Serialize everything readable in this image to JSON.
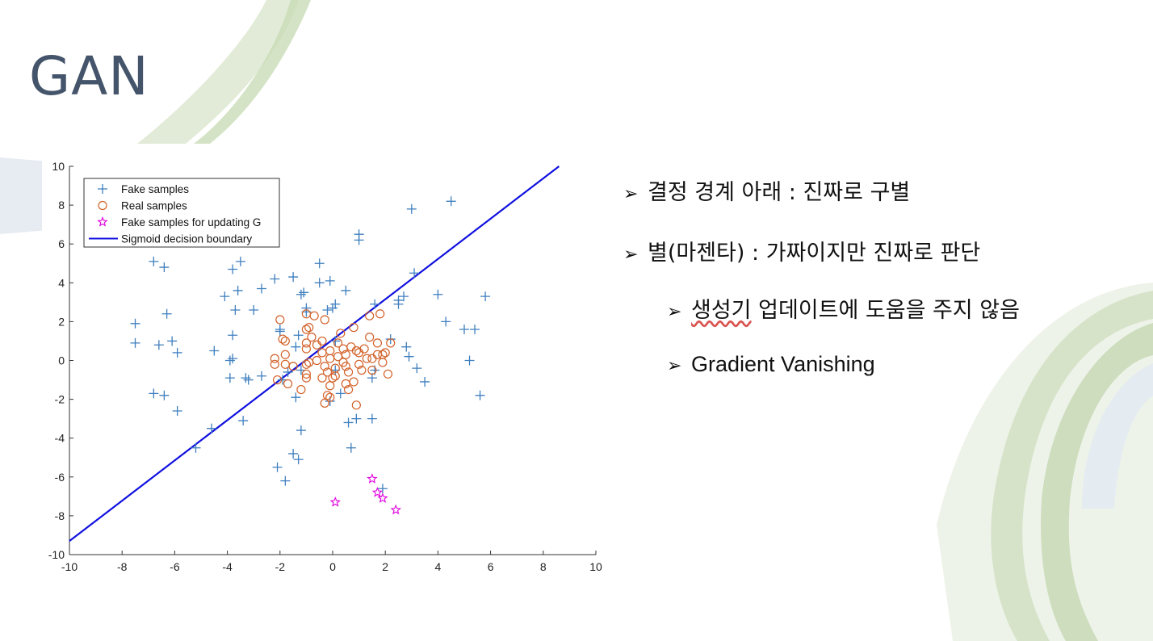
{
  "slide": {
    "title": "GAN",
    "bullets": [
      {
        "arrow": "➢",
        "text": "결정 경계 아래 : 진짜로 구별"
      },
      {
        "arrow": "➢",
        "text": "별(마젠타) : 가짜이지만 진짜로 판단"
      },
      {
        "arrow": "➢",
        "text_underlined": "생성기",
        "text_rest": " 업데이트에 도움을 주지 않음"
      },
      {
        "arrow": "➢",
        "text": "Gradient Vanishing"
      }
    ]
  },
  "colors": {
    "title": "#44546a",
    "fake": "#3f7fbf",
    "real": "#d2622a",
    "star": "#e000e0",
    "boundary": "#1010e0"
  },
  "chart_data": {
    "type": "scatter",
    "xlim": [
      -10,
      10
    ],
    "ylim": [
      -10,
      10
    ],
    "xticks": [
      "-10",
      "-8",
      "-6",
      "-4",
      "-2",
      "0",
      "2",
      "4",
      "6",
      "8",
      "10"
    ],
    "yticks": [
      "10",
      "8",
      "6",
      "4",
      "2",
      "0",
      "-2",
      "-4",
      "-6",
      "-8",
      "-10"
    ],
    "legend_position": "top-left",
    "legend": [
      {
        "label": "Fake samples",
        "marker": "plus"
      },
      {
        "label": "Real samples",
        "marker": "circle"
      },
      {
        "label": "Fake samples for updating G",
        "marker": "star"
      },
      {
        "label": "Sigmoid decision boundary",
        "marker": "line"
      }
    ],
    "series": [
      {
        "name": "Fake samples",
        "marker": "plus",
        "points": [
          [
            -7.5,
            1.9
          ],
          [
            -7.5,
            0.9
          ],
          [
            -6.8,
            5.1
          ],
          [
            -6.4,
            4.8
          ],
          [
            -6.3,
            2.4
          ],
          [
            -6.6,
            0.8
          ],
          [
            -6.1,
            1.0
          ],
          [
            -5.9,
            0.4
          ],
          [
            -6.8,
            -1.7
          ],
          [
            -6.4,
            -1.8
          ],
          [
            -5.9,
            -2.6
          ],
          [
            -4.6,
            -3.5
          ],
          [
            -5.2,
            -4.5
          ],
          [
            -4.5,
            0.5
          ],
          [
            -4.1,
            3.3
          ],
          [
            -3.8,
            4.7
          ],
          [
            -3.5,
            5.1
          ],
          [
            -3.6,
            3.6
          ],
          [
            -3.7,
            2.6
          ],
          [
            -3.0,
            2.6
          ],
          [
            -2.7,
            3.7
          ],
          [
            -3.8,
            1.3
          ],
          [
            -3.8,
            0.1
          ],
          [
            -3.9,
            0.0
          ],
          [
            -3.9,
            -0.9
          ],
          [
            -3.3,
            -0.9
          ],
          [
            -3.2,
            -1.0
          ],
          [
            -2.7,
            -0.8
          ],
          [
            -3.4,
            -3.1
          ],
          [
            -2.2,
            4.2
          ],
          [
            -1.5,
            4.3
          ],
          [
            -1.1,
            3.5
          ],
          [
            -1.2,
            3.4
          ],
          [
            -1.0,
            2.7
          ],
          [
            -1.0,
            2.5
          ],
          [
            -2.0,
            1.6
          ],
          [
            -2.0,
            1.5
          ],
          [
            -1.3,
            1.3
          ],
          [
            -1.4,
            0.7
          ],
          [
            -1.2,
            -0.5
          ],
          [
            -1.7,
            -0.6
          ],
          [
            -1.9,
            -1.0
          ],
          [
            -1.4,
            -1.9
          ],
          [
            -1.2,
            -3.6
          ],
          [
            -1.5,
            -4.8
          ],
          [
            -1.3,
            -5.1
          ],
          [
            -2.1,
            -5.5
          ],
          [
            -1.8,
            -6.2
          ],
          [
            -0.5,
            5.0
          ],
          [
            -0.5,
            4.0
          ],
          [
            -0.1,
            4.1
          ],
          [
            0.5,
            3.6
          ],
          [
            -0.2,
            2.6
          ],
          [
            0.0,
            2.7
          ],
          [
            0.1,
            2.9
          ],
          [
            0.1,
            1.0
          ],
          [
            0.1,
            -0.5
          ],
          [
            0.3,
            -1.7
          ],
          [
            -0.1,
            -2.1
          ],
          [
            0.6,
            -3.2
          ],
          [
            0.9,
            -3.0
          ],
          [
            0.7,
            -4.5
          ],
          [
            1.0,
            6.5
          ],
          [
            1.0,
            6.2
          ],
          [
            1.5,
            -0.9
          ],
          [
            1.6,
            -0.5
          ],
          [
            1.6,
            2.9
          ],
          [
            2.2,
            1.1
          ],
          [
            3.0,
            7.8
          ],
          [
            3.1,
            4.5
          ],
          [
            2.5,
            3.1
          ],
          [
            2.7,
            3.3
          ],
          [
            2.5,
            2.9
          ],
          [
            2.8,
            0.7
          ],
          [
            2.9,
            0.2
          ],
          [
            3.2,
            -0.4
          ],
          [
            3.5,
            -1.1
          ],
          [
            4.0,
            3.4
          ],
          [
            4.3,
            2.0
          ],
          [
            4.5,
            8.2
          ],
          [
            5.0,
            1.6
          ],
          [
            5.4,
            1.6
          ],
          [
            5.2,
            0.0
          ],
          [
            5.8,
            3.3
          ],
          [
            5.6,
            -1.8
          ],
          [
            1.5,
            -3.0
          ],
          [
            1.9,
            -6.6
          ]
        ]
      },
      {
        "name": "Real samples",
        "marker": "circle",
        "points": [
          [
            -2.0,
            2.1
          ],
          [
            -1.9,
            1.1
          ],
          [
            -1.8,
            1.0
          ],
          [
            -2.2,
            0.1
          ],
          [
            -2.2,
            -0.2
          ],
          [
            -1.8,
            0.3
          ],
          [
            -1.8,
            -0.2
          ],
          [
            -1.5,
            -0.3
          ],
          [
            -2.1,
            -1.0
          ],
          [
            -1.7,
            -1.2
          ],
          [
            -1.2,
            -1.5
          ],
          [
            -1.0,
            -0.9
          ],
          [
            -1.0,
            -0.7
          ],
          [
            -1.0,
            -0.2
          ],
          [
            -0.9,
            -0.1
          ],
          [
            -1.0,
            0.6
          ],
          [
            -1.0,
            0.9
          ],
          [
            -0.8,
            1.2
          ],
          [
            -0.6,
            0.8
          ],
          [
            -0.9,
            1.7
          ],
          [
            -1.0,
            1.6
          ],
          [
            -0.7,
            2.3
          ],
          [
            -1.0,
            2.4
          ],
          [
            -0.3,
            2.1
          ],
          [
            -0.4,
            1.0
          ],
          [
            -0.4,
            0.4
          ],
          [
            -0.1,
            0.1
          ],
          [
            -0.3,
            -0.3
          ],
          [
            -0.2,
            -0.6
          ],
          [
            -0.4,
            -0.9
          ],
          [
            -0.1,
            -1.3
          ],
          [
            -0.2,
            -1.8
          ],
          [
            -0.3,
            -2.2
          ],
          [
            -0.1,
            -1.9
          ],
          [
            0.0,
            -0.9
          ],
          [
            0.1,
            -0.4
          ],
          [
            0.2,
            0.2
          ],
          [
            0.2,
            0.9
          ],
          [
            0.3,
            1.4
          ],
          [
            0.4,
            0.6
          ],
          [
            0.5,
            0.3
          ],
          [
            0.5,
            -0.3
          ],
          [
            0.6,
            -0.6
          ],
          [
            0.5,
            -1.2
          ],
          [
            0.6,
            -1.5
          ],
          [
            0.8,
            -1.1
          ],
          [
            0.9,
            -2.3
          ],
          [
            0.7,
            0.7
          ],
          [
            0.8,
            1.7
          ],
          [
            1.0,
            0.4
          ],
          [
            1.0,
            -0.2
          ],
          [
            1.2,
            0.6
          ],
          [
            1.3,
            0.1
          ],
          [
            1.4,
            1.2
          ],
          [
            1.4,
            2.3
          ],
          [
            1.5,
            -0.5
          ],
          [
            1.7,
            0.3
          ],
          [
            1.7,
            0.9
          ],
          [
            1.8,
            2.4
          ],
          [
            1.9,
            -0.1
          ],
          [
            2.0,
            0.4
          ],
          [
            2.1,
            -0.7
          ],
          [
            2.2,
            0.9
          ],
          [
            1.9,
            0.3
          ],
          [
            1.5,
            0.1
          ],
          [
            0.9,
            0.5
          ],
          [
            0.4,
            -0.1
          ],
          [
            -0.6,
            0.0
          ],
          [
            -0.1,
            0.5
          ],
          [
            0.1,
            -0.8
          ],
          [
            1.1,
            -0.5
          ]
        ]
      },
      {
        "name": "Fake samples for updating G",
        "marker": "star",
        "points": [
          [
            0.1,
            -7.3
          ],
          [
            1.5,
            -6.1
          ],
          [
            1.7,
            -6.8
          ],
          [
            1.9,
            -7.1
          ],
          [
            2.4,
            -7.7
          ]
        ]
      }
    ],
    "boundary": {
      "name": "Sigmoid decision boundary",
      "x": [
        -10,
        8.6
      ],
      "y": [
        -9.3,
        10
      ]
    }
  }
}
